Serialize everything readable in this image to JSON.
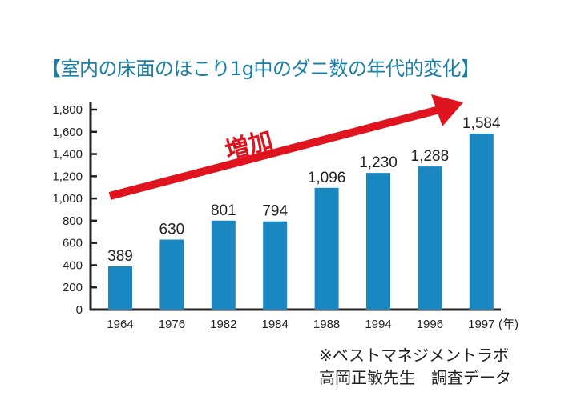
{
  "chart_data": {
    "type": "bar",
    "title": "【室内の床面のほこり1g中のダニ数の年代的変化】",
    "categories": [
      "1964",
      "1976",
      "1982",
      "1984",
      "1988",
      "1994",
      "1996",
      "1997"
    ],
    "values": [
      389,
      630,
      801,
      794,
      1096,
      1230,
      1288,
      1584
    ],
    "data_labels": [
      "389",
      "630",
      "801",
      "794",
      "1,096",
      "1,230",
      "1,288",
      "1,584"
    ],
    "xlabel": "(年)",
    "ylabel": "",
    "ylim": [
      0,
      1800
    ],
    "yticks": [
      0,
      200,
      400,
      600,
      800,
      1000,
      1200,
      1400,
      1600,
      1800
    ],
    "ytick_labels": [
      "0",
      "200",
      "400",
      "600",
      "800",
      "1,000",
      "1,200",
      "1,400",
      "1,600",
      "1,800"
    ],
    "grid": false,
    "annotation": "増加",
    "colors": {
      "bar": "#1a87c0",
      "arrow": "#e0141e",
      "title": "#1a7fa6"
    }
  },
  "notes": [
    "※ベストマネジメントラボ",
    "高岡正敏先生　調査データ"
  ]
}
